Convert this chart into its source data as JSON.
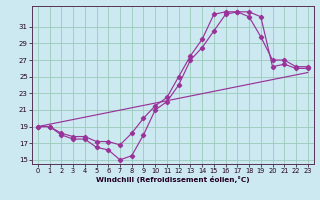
{
  "xlabel": "Windchill (Refroidissement éolien,°C)",
  "bg_color": "#cce8f0",
  "line_color": "#993399",
  "grid_color": "#99ccbb",
  "xlim": [
    -0.5,
    23.5
  ],
  "ylim": [
    14.5,
    33.5
  ],
  "yticks": [
    15,
    17,
    19,
    21,
    23,
    25,
    27,
    29,
    31
  ],
  "xticks": [
    0,
    1,
    2,
    3,
    4,
    5,
    6,
    7,
    8,
    9,
    10,
    11,
    12,
    13,
    14,
    15,
    16,
    17,
    18,
    19,
    20,
    21,
    22,
    23
  ],
  "line1_x": [
    0,
    1,
    2,
    3,
    4,
    5,
    6,
    7,
    8,
    9,
    10,
    11,
    12,
    13,
    14,
    15,
    16,
    17,
    18,
    19,
    20,
    21,
    22,
    23
  ],
  "line1_y": [
    19,
    19,
    18,
    17.5,
    17.5,
    16.5,
    16.2,
    15.0,
    15.5,
    18.0,
    21.0,
    22.0,
    24.0,
    27.0,
    28.5,
    30.5,
    32.5,
    32.8,
    32.8,
    32.2,
    26.2,
    26.5,
    26.0,
    26.0
  ],
  "line2_x": [
    0,
    1,
    2,
    3,
    4,
    5,
    6,
    7,
    8,
    9,
    10,
    11,
    12,
    13,
    14,
    15,
    16,
    17,
    18,
    19,
    20,
    21,
    22,
    23
  ],
  "line2_y": [
    19,
    19,
    18.2,
    17.8,
    17.8,
    17.2,
    17.2,
    16.8,
    18.2,
    20.0,
    21.5,
    22.5,
    25.0,
    27.5,
    29.5,
    32.5,
    32.8,
    32.8,
    32.2,
    29.8,
    27.0,
    27.0,
    26.2,
    26.2
  ],
  "line3_x": [
    0,
    23
  ],
  "line3_y": [
    19.0,
    25.5
  ]
}
